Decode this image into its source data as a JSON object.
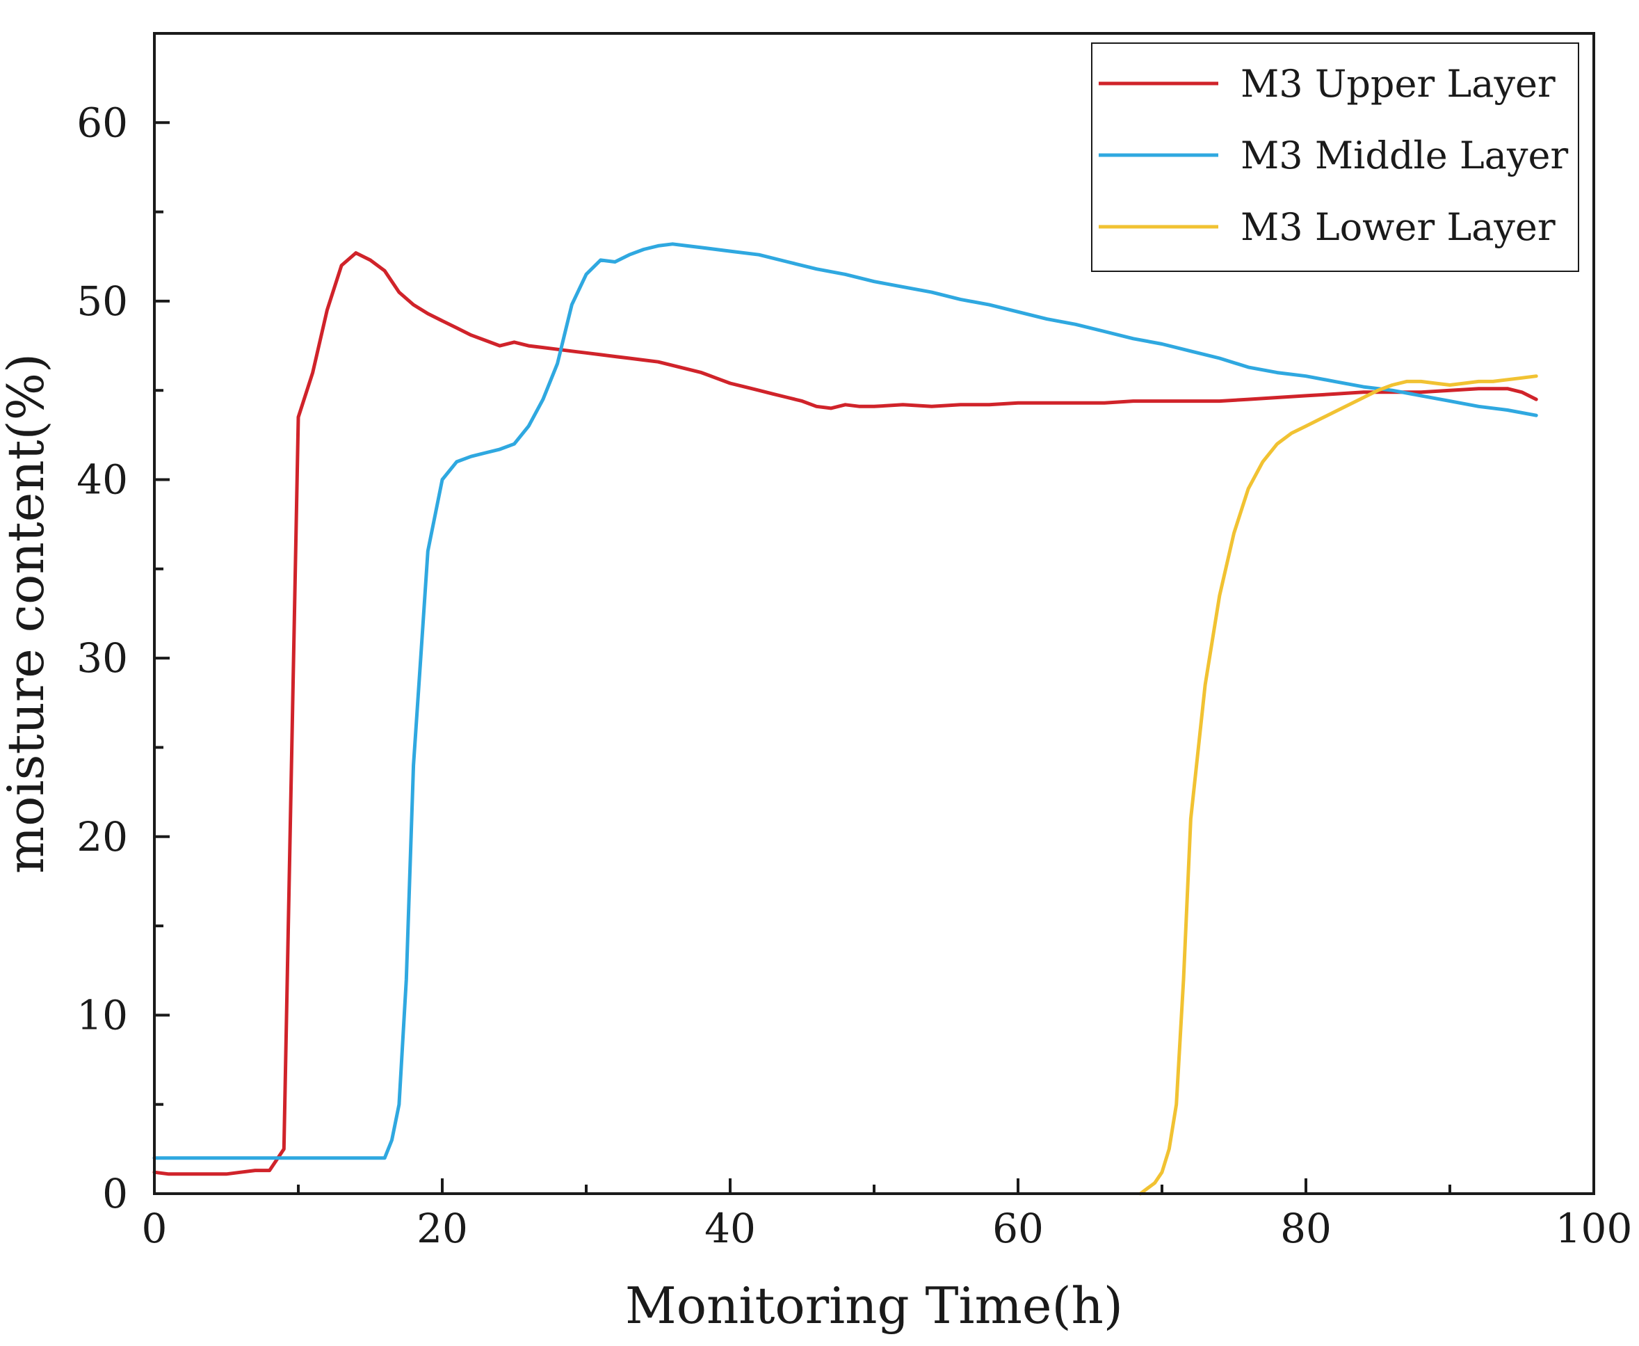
{
  "chart_data": {
    "type": "line",
    "title": "",
    "xlabel": "Monitoring Time(h)",
    "ylabel": "moisture content(%)",
    "xlim": [
      0,
      100
    ],
    "ylim": [
      0,
      65
    ],
    "xticks": [
      0,
      20,
      40,
      60,
      80,
      100
    ],
    "xtick_labels": [
      "0",
      "20",
      "40",
      "60",
      "80",
      "100"
    ],
    "yticks": [
      0,
      10,
      20,
      30,
      40,
      50,
      60
    ],
    "ytick_labels": [
      "0",
      "10",
      "20",
      "30",
      "40",
      "50",
      "60"
    ],
    "grid": false,
    "legend_position": "top-right",
    "series": [
      {
        "name": "M3 Upper Layer",
        "color": "#d0232a",
        "x": [
          0,
          1,
          2,
          3,
          4,
          5,
          6,
          7,
          8,
          9,
          10,
          11,
          12,
          13,
          14,
          15,
          16,
          17,
          18,
          19,
          20,
          21,
          22,
          23,
          24,
          25,
          26,
          27,
          28,
          29,
          30,
          31,
          32,
          33,
          34,
          35,
          36,
          37,
          38,
          39,
          40,
          41,
          42,
          43,
          44,
          45,
          46,
          47,
          48,
          49,
          50,
          52,
          54,
          56,
          58,
          60,
          62,
          64,
          66,
          68,
          70,
          72,
          74,
          76,
          78,
          80,
          82,
          84,
          86,
          88,
          90,
          92,
          94,
          95,
          96
        ],
        "values": [
          1.2,
          1.1,
          1.1,
          1.1,
          1.1,
          1.1,
          1.2,
          1.3,
          1.3,
          2.5,
          43.5,
          46,
          49.5,
          52,
          52.7,
          52.3,
          51.7,
          50.5,
          49.8,
          49.3,
          48.9,
          48.5,
          48.1,
          47.8,
          47.5,
          47.7,
          47.5,
          47.4,
          47.3,
          47.2,
          47.1,
          47.0,
          46.9,
          46.8,
          46.7,
          46.6,
          46.4,
          46.2,
          46.0,
          45.7,
          45.4,
          45.2,
          45.0,
          44.8,
          44.6,
          44.4,
          44.1,
          44.0,
          44.2,
          44.1,
          44.1,
          44.2,
          44.1,
          44.2,
          44.2,
          44.3,
          44.3,
          44.3,
          44.3,
          44.4,
          44.4,
          44.4,
          44.4,
          44.5,
          44.6,
          44.7,
          44.8,
          44.9,
          44.9,
          44.9,
          45.0,
          45.1,
          45.1,
          44.9,
          44.5
        ]
      },
      {
        "name": "M3 Middle Layer",
        "color": "#2fa8e0",
        "x": [
          0,
          2,
          4,
          6,
          8,
          10,
          12,
          14,
          16,
          16.5,
          17,
          17.5,
          18,
          18.5,
          19,
          20,
          21,
          22,
          23,
          24,
          25,
          26,
          27,
          28,
          29,
          30,
          31,
          32,
          33,
          34,
          35,
          36,
          37,
          38,
          40,
          42,
          44,
          46,
          48,
          50,
          52,
          54,
          56,
          58,
          60,
          62,
          64,
          66,
          68,
          70,
          72,
          74,
          76,
          78,
          80,
          82,
          84,
          86,
          88,
          90,
          92,
          94,
          96
        ],
        "values": [
          2.0,
          2.0,
          2.0,
          2.0,
          2.0,
          2.0,
          2.0,
          2.0,
          2.0,
          3.0,
          5.0,
          12.0,
          24.0,
          30.0,
          36.0,
          40.0,
          41.0,
          41.3,
          41.5,
          41.7,
          42.0,
          43.0,
          44.5,
          46.5,
          49.8,
          51.5,
          52.3,
          52.2,
          52.6,
          52.9,
          53.1,
          53.2,
          53.1,
          53.0,
          52.8,
          52.6,
          52.2,
          51.8,
          51.5,
          51.1,
          50.8,
          50.5,
          50.1,
          49.8,
          49.4,
          49.0,
          48.7,
          48.3,
          47.9,
          47.6,
          47.2,
          46.8,
          46.3,
          46.0,
          45.8,
          45.5,
          45.2,
          45.0,
          44.7,
          44.4,
          44.1,
          43.9,
          43.6
        ]
      },
      {
        "name": "M3 Lower Layer",
        "color": "#f1c232",
        "x": [
          68.5,
          69,
          69.5,
          70,
          70.5,
          71,
          71.5,
          72,
          73,
          74,
          75,
          76,
          77,
          78,
          79,
          80,
          81,
          82,
          83,
          84,
          85,
          86,
          87,
          88,
          89,
          90,
          91,
          92,
          93,
          94,
          95,
          96
        ],
        "values": [
          0.0,
          0.3,
          0.6,
          1.2,
          2.5,
          5.0,
          12.0,
          21.0,
          28.5,
          33.5,
          37.0,
          39.5,
          41.0,
          42.0,
          42.6,
          43.0,
          43.4,
          43.8,
          44.2,
          44.6,
          45.0,
          45.3,
          45.5,
          45.5,
          45.4,
          45.3,
          45.4,
          45.5,
          45.5,
          45.6,
          45.7,
          45.8
        ]
      }
    ]
  }
}
